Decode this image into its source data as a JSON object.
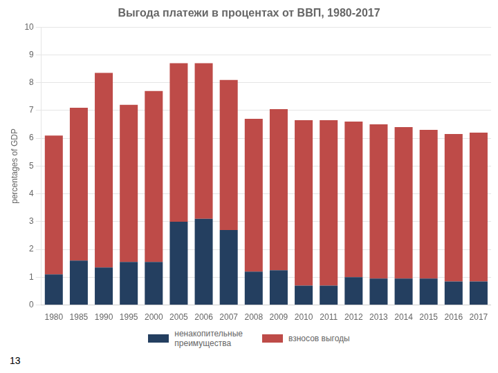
{
  "chart_data": {
    "type": "bar",
    "title": "Выгода платежи в процентах от ВВП, 1980-2017",
    "y_label": "percentages of GDP",
    "categories": [
      "1980",
      "1985",
      "1990",
      "1995",
      "2000",
      "2005",
      "2006",
      "2007",
      "2008",
      "2009",
      "2010",
      "2011",
      "2012",
      "2013",
      "2014",
      "2015",
      "2016",
      "2017"
    ],
    "series": [
      {
        "name": "ненакопительные\nпреимущества",
        "color": "#243F60",
        "values": [
          1.1,
          1.6,
          1.35,
          1.55,
          1.55,
          3.0,
          3.1,
          2.7,
          1.2,
          1.25,
          0.7,
          0.7,
          1.0,
          0.95,
          0.95,
          0.95,
          0.85,
          0.85
        ]
      },
      {
        "name": "взносов выгоды",
        "color": "#BE4B48",
        "values": [
          5.0,
          5.5,
          7.0,
          5.65,
          6.15,
          5.7,
          5.6,
          5.4,
          5.5,
          5.8,
          5.95,
          5.95,
          5.6,
          5.55,
          5.45,
          5.35,
          5.3,
          5.35
        ]
      }
    ],
    "stacked": true,
    "ylim": [
      0,
      10
    ],
    "yticks": [
      0,
      1,
      2,
      3,
      4,
      5,
      6,
      7,
      8,
      9,
      10
    ],
    "grid": true,
    "legend": "bottom",
    "annotations": [
      "13"
    ]
  }
}
